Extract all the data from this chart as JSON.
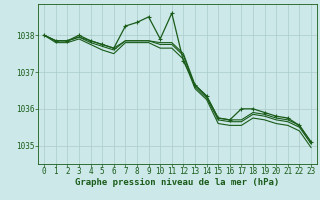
{
  "background_color": "#cce8e8",
  "grid_color": "#aacccc",
  "line_color": "#1a5c1a",
  "title": "Graphe pression niveau de la mer (hPa)",
  "title_fontsize": 6.5,
  "tick_fontsize": 5.5,
  "xlim": [
    -0.5,
    23.5
  ],
  "ylim": [
    1034.5,
    1038.85
  ],
  "yticks": [
    1035,
    1036,
    1037,
    1038
  ],
  "xticks": [
    0,
    1,
    2,
    3,
    4,
    5,
    6,
    7,
    8,
    9,
    10,
    11,
    12,
    13,
    14,
    15,
    16,
    17,
    18,
    19,
    20,
    21,
    22,
    23
  ],
  "series": [
    {
      "x": [
        0,
        1,
        2,
        3,
        4,
        5,
        6,
        7,
        8,
        9,
        10,
        11,
        12,
        13,
        14,
        15,
        16,
        17,
        18,
        19,
        20,
        21,
        22,
        23
      ],
      "y": [
        1038.0,
        1037.85,
        1037.85,
        1038.0,
        1037.85,
        1037.75,
        1037.65,
        1038.25,
        1038.35,
        1038.5,
        1037.9,
        1038.6,
        1037.3,
        1036.65,
        1036.35,
        1035.75,
        1035.7,
        1036.0,
        1036.0,
        1035.9,
        1035.8,
        1035.75,
        1035.55,
        1035.1
      ],
      "marker": true
    },
    {
      "x": [
        0,
        1,
        2,
        3,
        4,
        5,
        6,
        7,
        8,
        9,
        10,
        11,
        12,
        13,
        14,
        15,
        16,
        17,
        18,
        19,
        20,
        21,
        22,
        23
      ],
      "y": [
        1038.0,
        1037.85,
        1037.85,
        1037.95,
        1037.85,
        1037.75,
        1037.65,
        1037.85,
        1037.85,
        1037.85,
        1037.8,
        1037.8,
        1037.5,
        1036.65,
        1036.35,
        1035.75,
        1035.7,
        1035.7,
        1035.9,
        1035.85,
        1035.75,
        1035.7,
        1035.55,
        1035.1
      ],
      "marker": false
    },
    {
      "x": [
        0,
        1,
        2,
        3,
        4,
        5,
        6,
        7,
        8,
        9,
        10,
        11,
        12,
        13,
        14,
        15,
        16,
        17,
        18,
        19,
        20,
        21,
        22,
        23
      ],
      "y": [
        1038.0,
        1037.85,
        1037.85,
        1037.95,
        1037.8,
        1037.7,
        1037.6,
        1037.85,
        1037.85,
        1037.85,
        1037.75,
        1037.75,
        1037.45,
        1036.6,
        1036.3,
        1035.7,
        1035.65,
        1035.65,
        1035.85,
        1035.8,
        1035.7,
        1035.65,
        1035.5,
        1035.05
      ],
      "marker": false
    },
    {
      "x": [
        0,
        1,
        2,
        3,
        4,
        5,
        6,
        7,
        8,
        9,
        10,
        11,
        12,
        13,
        14,
        15,
        16,
        17,
        18,
        19,
        20,
        21,
        22,
        23
      ],
      "y": [
        1038.0,
        1037.8,
        1037.8,
        1037.9,
        1037.75,
        1037.6,
        1037.5,
        1037.8,
        1037.8,
        1037.8,
        1037.65,
        1037.65,
        1037.35,
        1036.55,
        1036.25,
        1035.6,
        1035.55,
        1035.55,
        1035.75,
        1035.7,
        1035.6,
        1035.55,
        1035.4,
        1034.95
      ],
      "marker": false
    }
  ]
}
